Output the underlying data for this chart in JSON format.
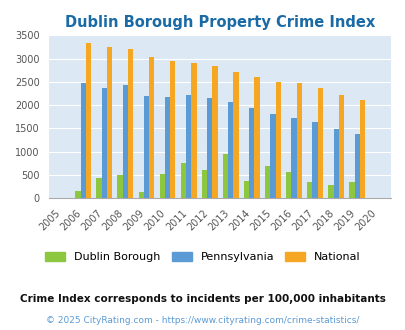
{
  "title": "Dublin Borough Property Crime Index",
  "years": [
    "2005",
    "2006",
    "2007",
    "2008",
    "2009",
    "2010",
    "2011",
    "2012",
    "2013",
    "2014",
    "2015",
    "2016",
    "2017",
    "2018",
    "2019",
    "2020"
  ],
  "dublin_borough": [
    0,
    150,
    430,
    490,
    140,
    530,
    750,
    610,
    940,
    370,
    690,
    560,
    340,
    290,
    350,
    0
  ],
  "pennsylvania": [
    0,
    2470,
    2370,
    2440,
    2200,
    2175,
    2225,
    2150,
    2060,
    1940,
    1800,
    1715,
    1640,
    1490,
    1390,
    0
  ],
  "national": [
    0,
    3340,
    3260,
    3210,
    3040,
    2950,
    2910,
    2850,
    2720,
    2600,
    2500,
    2470,
    2370,
    2210,
    2100,
    0
  ],
  "dublin_color": "#8dc63f",
  "pennsylvania_color": "#5b9bd5",
  "national_color": "#f5a623",
  "bg_color": "#dce9f5",
  "ylim": [
    0,
    3500
  ],
  "yticks": [
    0,
    500,
    1000,
    1500,
    2000,
    2500,
    3000,
    3500
  ],
  "legend_labels": [
    "Dublin Borough",
    "Pennsylvania",
    "National"
  ],
  "note": "Crime Index corresponds to incidents per 100,000 inhabitants",
  "copyright": "© 2025 CityRating.com - https://www.cityrating.com/crime-statistics/",
  "title_color": "#1a6aa6",
  "note_color": "#111111",
  "copyright_color": "#5b9bd5",
  "bar_width": 0.25
}
